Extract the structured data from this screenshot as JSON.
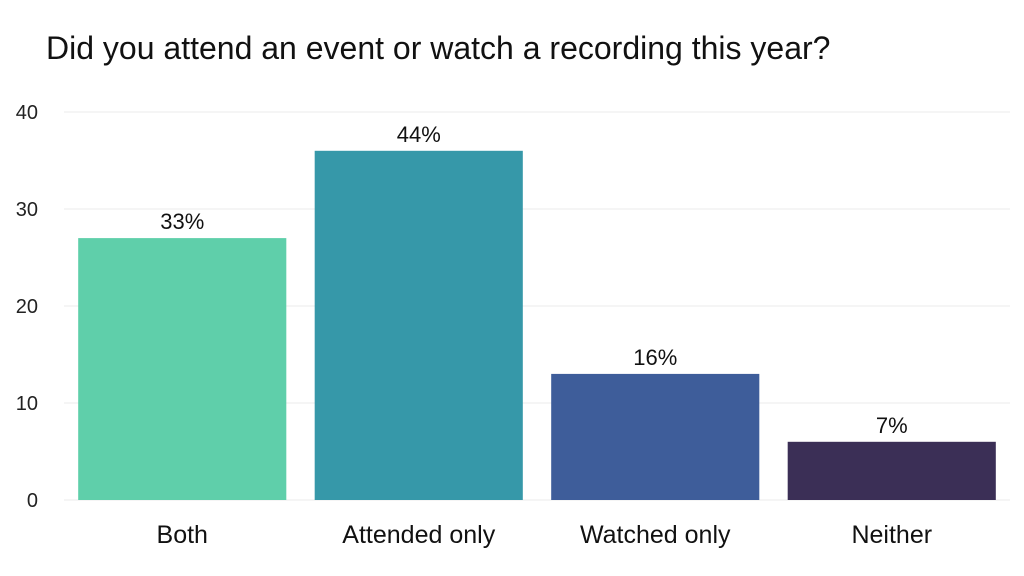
{
  "chart_data": {
    "type": "bar",
    "title": "Did you attend an event or watch a recording this year?",
    "xlabel": "",
    "ylabel": "",
    "categories": [
      "Both",
      "Attended only",
      "Watched only",
      "Neither"
    ],
    "values": [
      27,
      36,
      13,
      6
    ],
    "data_labels": [
      "33%",
      "44%",
      "16%",
      "7%"
    ],
    "colors": [
      "#5fcfaa",
      "#3698a9",
      "#3e5d9a",
      "#3b2f56"
    ],
    "ylim": [
      0,
      40
    ],
    "yticks": [
      0,
      10,
      20,
      30,
      40
    ],
    "grid": true,
    "legend": "none"
  }
}
